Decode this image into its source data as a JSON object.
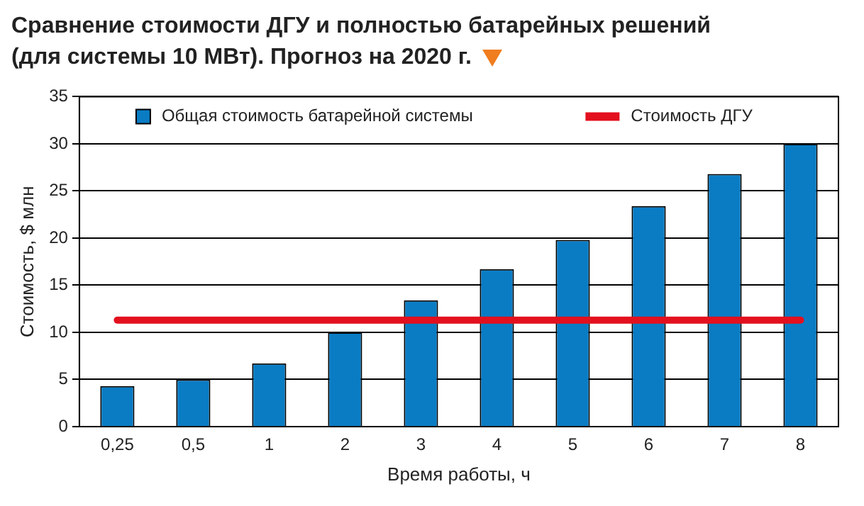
{
  "chart_data": {
    "type": "bar",
    "title": "Сравнение стоимости ДГУ и полностью батарейных решений (для системы 10 МВт). Прогноз на 2020 г.",
    "xlabel": "Время работы, ч",
    "ylabel": "Стоимость, $ млн",
    "categories": [
      "0,25",
      "0,5",
      "1",
      "2",
      "3",
      "4",
      "5",
      "6",
      "7",
      "8"
    ],
    "series": [
      {
        "name": "Общая стоимость батарейной системы",
        "color": "#0a7cc4",
        "values": [
          4.3,
          5.0,
          6.7,
          10.0,
          13.4,
          16.7,
          19.8,
          23.4,
          26.8,
          30.0
        ]
      },
      {
        "name": "Стоимость ДГУ",
        "type": "line",
        "color": "#e3101e",
        "values": [
          11.3,
          11.3,
          11.3,
          11.3,
          11.3,
          11.3,
          11.3,
          11.3,
          11.3,
          11.3
        ]
      }
    ],
    "ylim": [
      0,
      35
    ],
    "yticks": [
      0,
      5,
      10,
      15,
      20,
      25,
      30,
      35
    ],
    "grid": "y",
    "legend": "top",
    "marker": "none"
  }
}
